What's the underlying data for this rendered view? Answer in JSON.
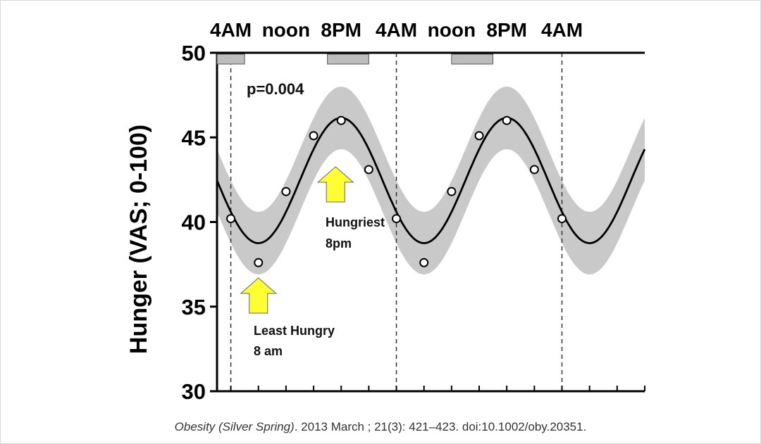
{
  "chart_data": {
    "type": "line",
    "ylabel": "Hunger (VAS; 0-100)",
    "ylim": [
      30,
      50
    ],
    "yticks": [
      "30",
      "35",
      "40",
      "45",
      "50"
    ],
    "xlim": [
      0,
      62
    ],
    "top_axis_labels": [
      "4AM",
      "noon",
      "8PM",
      "4AM",
      "noon",
      "8PM",
      "4AM"
    ],
    "night_periods": [
      [
        0,
        4
      ],
      [
        16,
        22
      ],
      [
        34,
        40
      ]
    ],
    "dashed_lines_x": [
      2,
      26,
      50
    ],
    "series": [
      {
        "kind": "points",
        "x": [
          2,
          6,
          10,
          14,
          18,
          22,
          26,
          30,
          34,
          38,
          42,
          46,
          50
        ],
        "y": [
          40.2,
          37.6,
          41.8,
          45.1,
          46.0,
          43.1,
          40.2,
          37.6,
          41.8,
          45.1,
          46.0,
          43.1,
          40.2
        ]
      },
      {
        "kind": "fit",
        "mesor": 42.45,
        "amplitude": 3.7,
        "acrophase_x": 18,
        "period": 24,
        "band_halfwidth": 1.85
      }
    ],
    "p_value": "p=0.004",
    "annotations": [
      {
        "text_lines": [
          "Hungriest",
          "8pm"
        ],
        "points_to_x": 18,
        "color": "#ffff33"
      },
      {
        "text_lines": [
          "Least Hungry",
          "8 am"
        ],
        "points_to_x": 6,
        "color": "#ffff33"
      }
    ]
  },
  "citation": {
    "journal": "Obesity (Silver Spring)",
    "rest": ". 2013 March ; 21(3): 421–423. doi:10.1002/oby.20351."
  }
}
